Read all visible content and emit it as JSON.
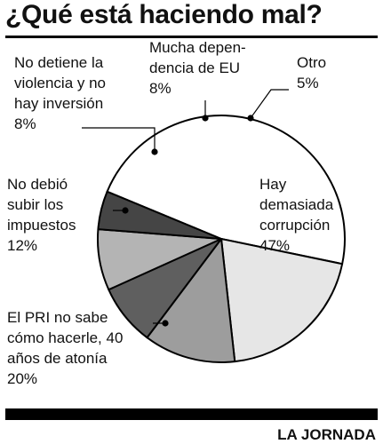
{
  "header": {
    "title": "¿Qué está haciendo mal?"
  },
  "footer": {
    "source": "LA JORNADA"
  },
  "chart_data": {
    "type": "pie",
    "title": "¿Qué está haciendo mal?",
    "slices": [
      {
        "label_lines": [
          "Hay",
          "demasiada",
          "corrupción",
          "47%"
        ],
        "value": 47,
        "color": "#ffffff"
      },
      {
        "label_lines": [
          "El PRI no sabe",
          "cómo hacerle, 40",
          "años de atonía",
          "20%"
        ],
        "value": 20,
        "color": "#e6e6e6"
      },
      {
        "label_lines": [
          "No debió",
          "subir los",
          "impuestos",
          "12%"
        ],
        "value": 12,
        "color": "#9d9d9d"
      },
      {
        "label_lines": [
          "No detiene la",
          "violencia y no",
          "hay inversión",
          "8%"
        ],
        "value": 8,
        "color": "#5f5f5f"
      },
      {
        "label_lines": [
          "Mucha depen-",
          "dencia de EU",
          "8%"
        ],
        "value": 8,
        "color": "#b4b4b4"
      },
      {
        "label_lines": [
          "Otro",
          "5%"
        ],
        "value": 5,
        "color": "#454545"
      }
    ]
  }
}
